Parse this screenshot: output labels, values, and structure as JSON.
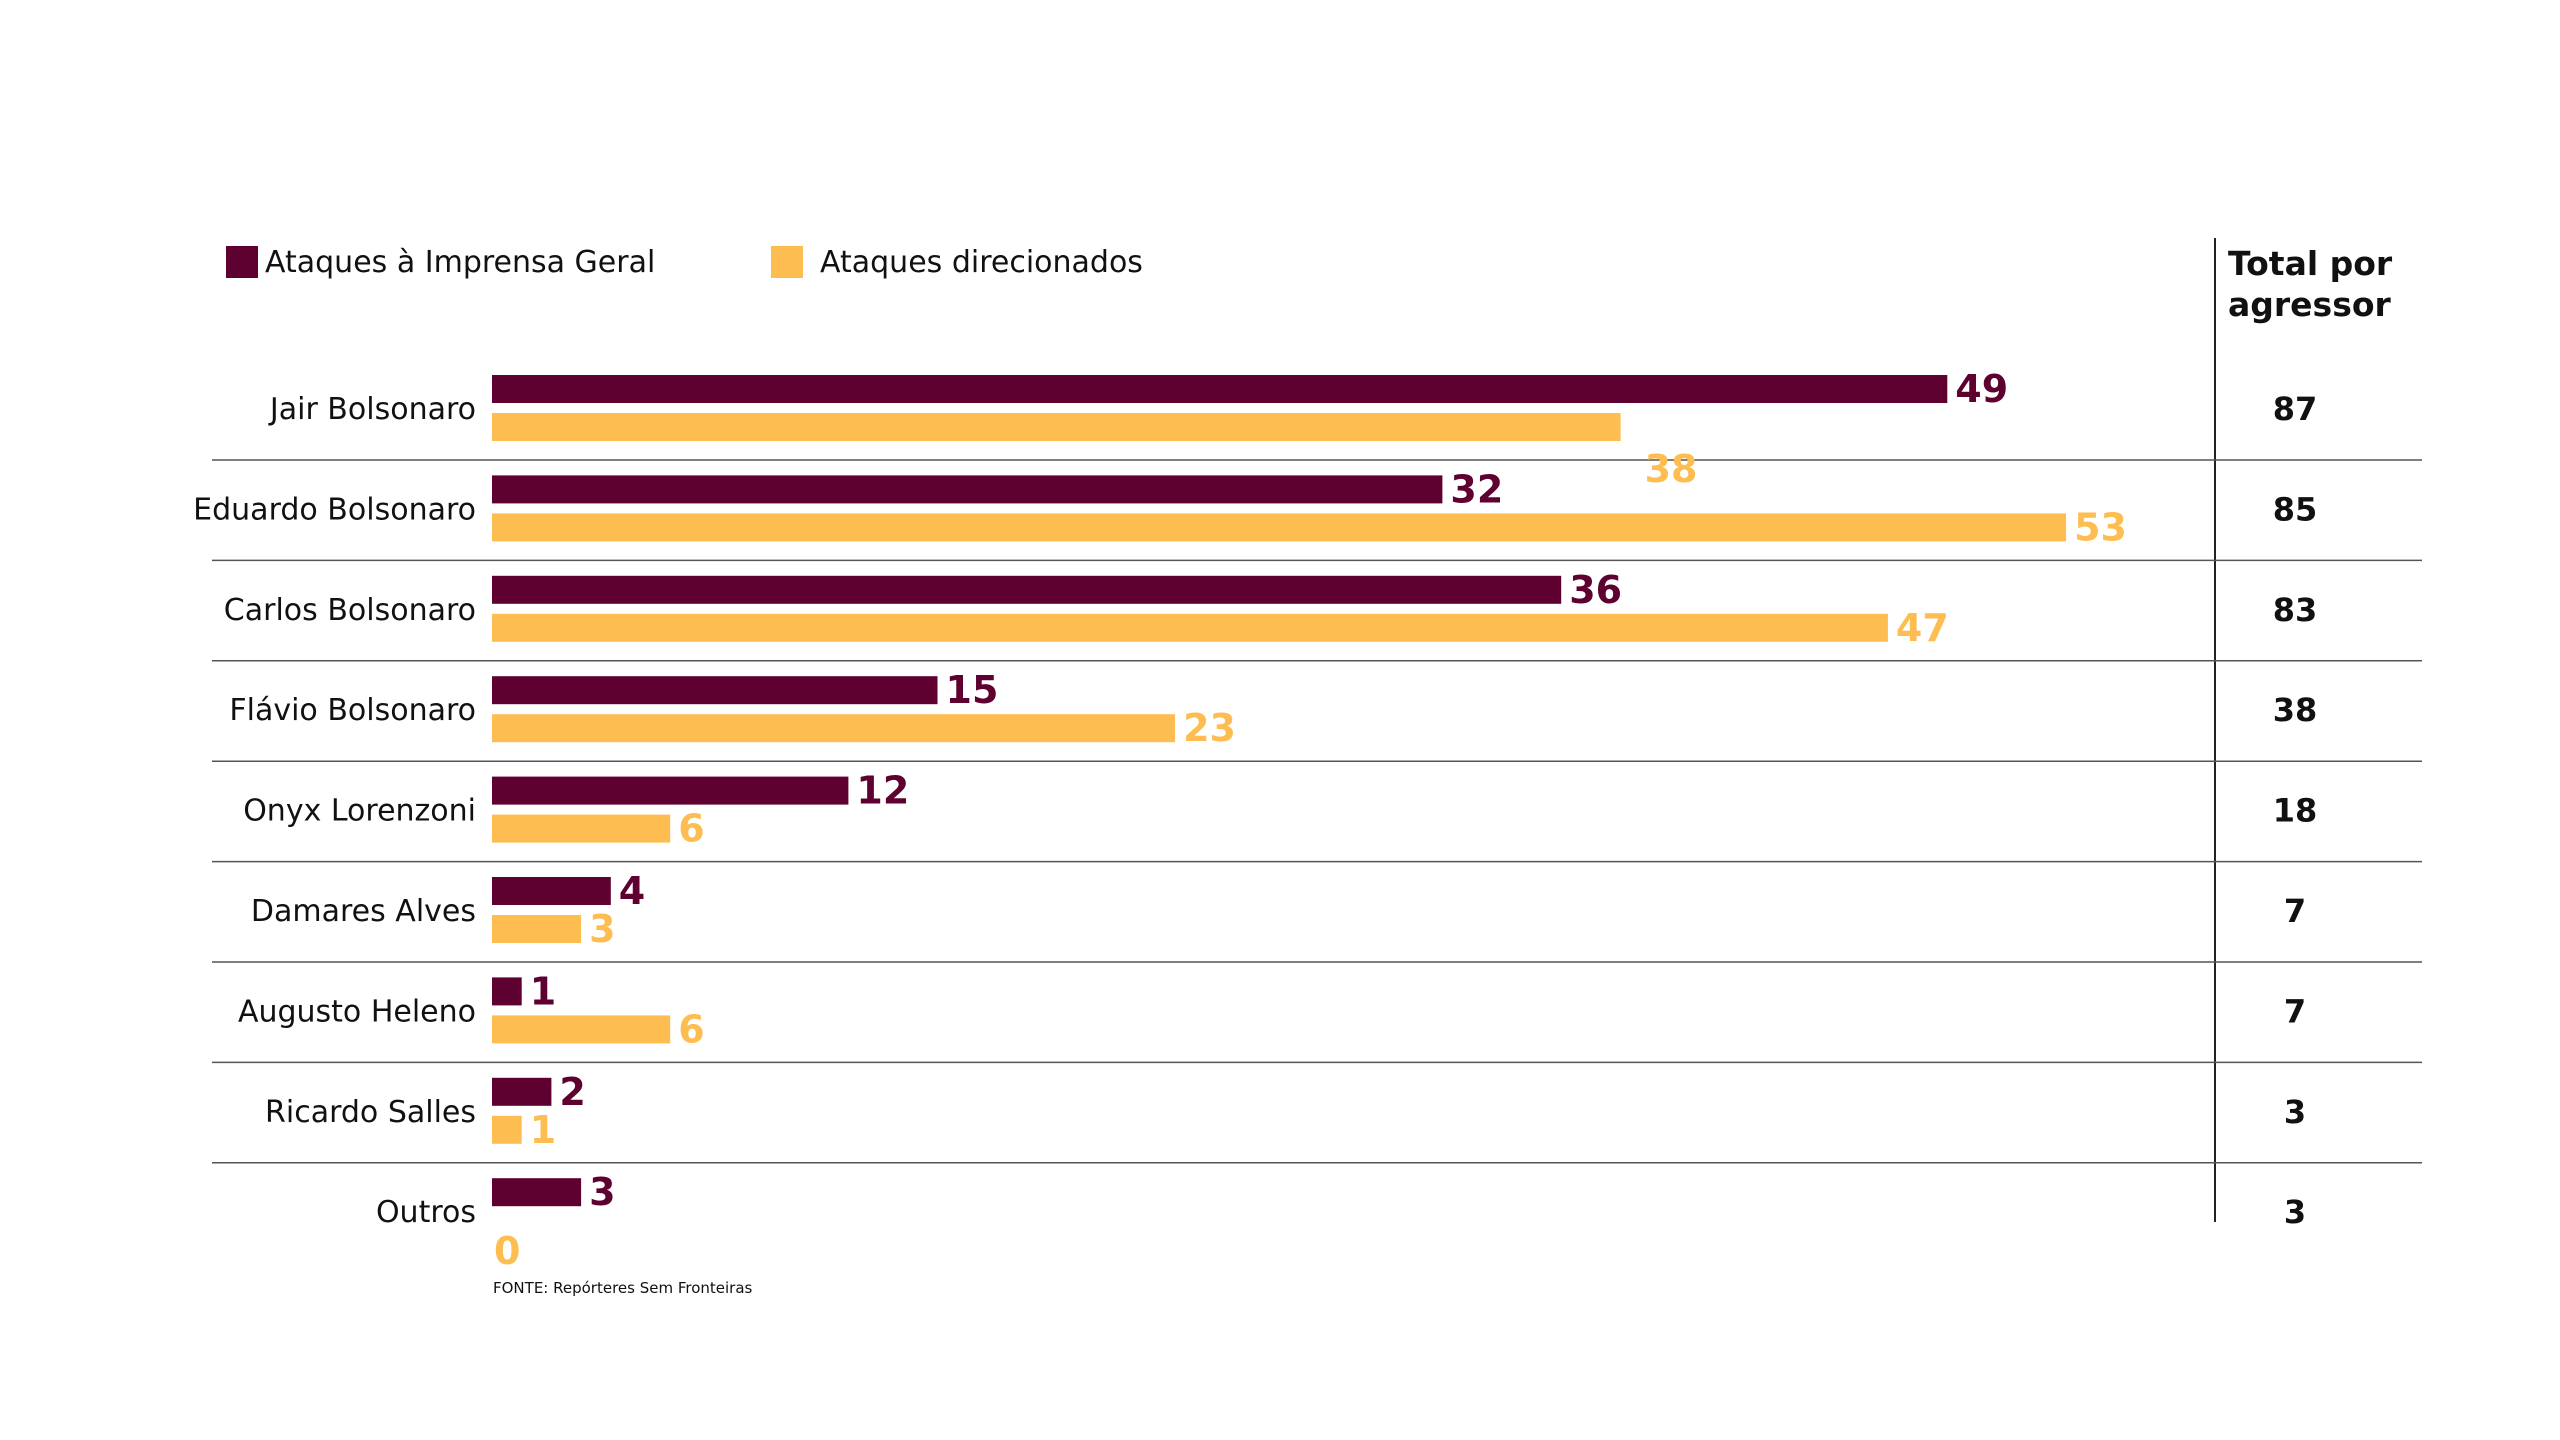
{
  "chart_data": {
    "type": "bar",
    "orientation": "horizontal",
    "categories": [
      "Jair Bolsonaro",
      "Eduardo Bolsonaro",
      "Carlos Bolsonaro",
      "Flávio Bolsonaro",
      "Onyx Lorenzoni",
      "Damares Alves",
      "Augusto Heleno",
      "Ricardo Salles",
      "Outros"
    ],
    "series": [
      {
        "name": "Ataques à Imprensa Geral",
        "color": "#5e0030",
        "values": [
          49,
          32,
          36,
          15,
          12,
          4,
          1,
          2,
          3
        ]
      },
      {
        "name": "Ataques direcionados",
        "color": "#fdbd50",
        "values": [
          38,
          53,
          47,
          23,
          6,
          3,
          6,
          1,
          0
        ]
      }
    ],
    "totals_header": [
      "Total por",
      "agressor"
    ],
    "totals": [
      87,
      85,
      83,
      38,
      18,
      7,
      7,
      3,
      3
    ],
    "source": "FONTE: Repórteres Sem Fronteiras",
    "legend_position": "top-left",
    "grid": false
  }
}
